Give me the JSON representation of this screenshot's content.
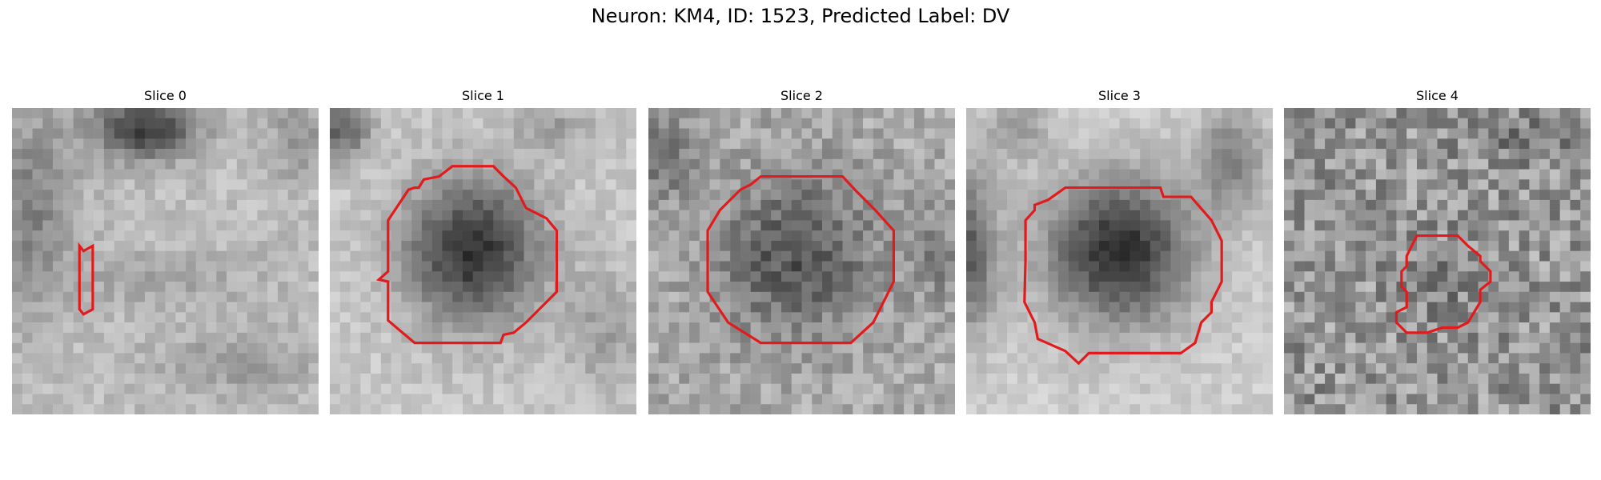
{
  "figure": {
    "title": "Neuron: KM4, ID: 1523, Predicted Label: DV"
  },
  "slices": [
    {
      "label": "Slice 0"
    },
    {
      "label": "Slice 1"
    },
    {
      "label": "Slice 2"
    },
    {
      "label": "Slice 3"
    },
    {
      "label": "Slice 4"
    }
  ],
  "colors": {
    "contour": "#e31a1c",
    "background": "#ffffff"
  }
}
